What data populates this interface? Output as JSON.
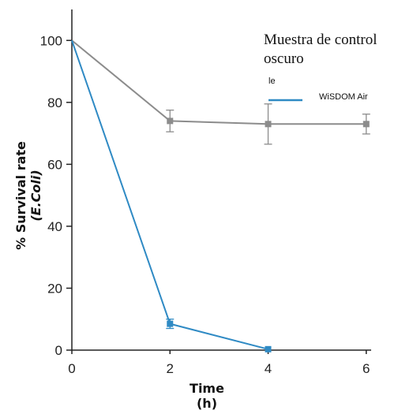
{
  "chart_data": {
    "type": "line",
    "title": "",
    "xlabel": "Time",
    "xlabel_unit": "(h)",
    "ylabel": "% Survival rate",
    "ylabel_sub": "(E.Coli)",
    "x_ticks": [
      0,
      2,
      4,
      6
    ],
    "y_ticks": [
      0,
      20,
      40,
      60,
      80,
      100
    ],
    "xlim": [
      0,
      6.1
    ],
    "ylim": [
      0,
      110
    ],
    "grid": false,
    "legend_position": "top-right",
    "legend_title_line1": "Muestra de control",
    "legend_title_line2": "oscuro",
    "legend_note": "le",
    "series": [
      {
        "legend_label": "",
        "color": "#8c8c8c",
        "marker": "square",
        "x": [
          0,
          2,
          4,
          6
        ],
        "y": [
          100,
          74,
          73,
          73
        ],
        "err": [
          0,
          3.5,
          6.5,
          3.2
        ]
      },
      {
        "legend_label": "WiSDOM Air",
        "color": "#2f8ac4",
        "marker": "square",
        "x": [
          0,
          2,
          4
        ],
        "y": [
          100,
          8.5,
          0.3
        ],
        "err": [
          0,
          1.5,
          0
        ]
      }
    ]
  }
}
